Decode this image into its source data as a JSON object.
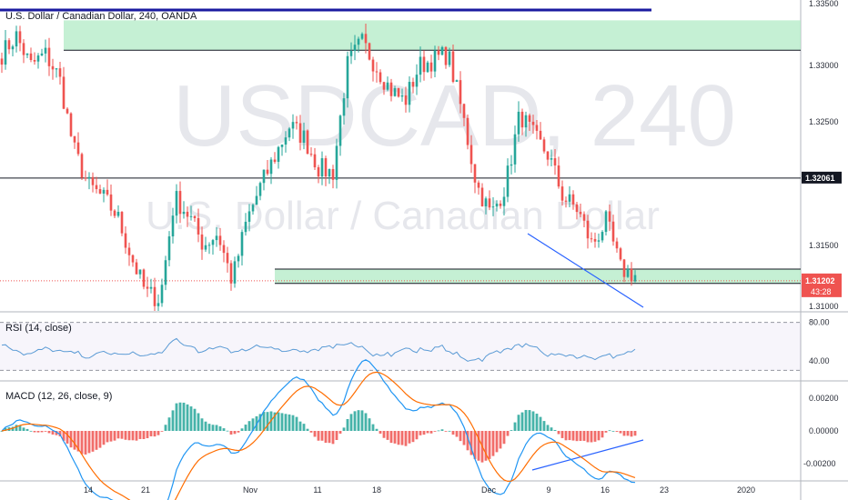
{
  "title": "U.S. Dollar / Canadian Dollar, 240, OANDA",
  "watermark": {
    "symbol": "USDCAD, 240",
    "description": "U.S. Dollar / Canadian Dollar"
  },
  "colors": {
    "up": "#26a69a",
    "down": "#ef5350",
    "zone": "#b2ebc5",
    "rsi": "#5b9bd5",
    "macd": "#2196f3",
    "signal": "#ff6d00",
    "trendline": "#2962ff",
    "hist_up": "#26a69a",
    "hist_down": "#ef5350"
  },
  "price_axis": {
    "ticks": [
      "1.33500",
      "1.33000",
      "1.32500",
      "1.32061",
      "1.31500",
      "1.31202",
      "1.31000"
    ],
    "min": 1.3095,
    "max": 1.3355
  },
  "badges": {
    "level": "1.32061",
    "last_price": "1.31202",
    "countdown": "43:28"
  },
  "rsi": {
    "label": "RSI (14, close)",
    "ticks": [
      "80.00",
      "40.00"
    ],
    "upper": 80,
    "lower": 30
  },
  "macd": {
    "label": "MACD (12, 26, close, 9)",
    "ticks": [
      "0.00200",
      "0.00000",
      "-0.00200"
    ]
  },
  "time_axis": [
    "14",
    "21",
    "Nov",
    "11",
    "18",
    "Dec",
    "9",
    "16",
    "23",
    "2020"
  ],
  "chart_data": {
    "type": "candlestick",
    "title": "U.S. Dollar / Canadian Dollar, 240, OANDA",
    "symbol": "USDCAD",
    "interval": "240",
    "close_path": [
      1.331,
      1.3325,
      1.33,
      1.331,
      1.329,
      1.323,
      1.32,
      1.319,
      1.3175,
      1.314,
      1.311,
      1.3105,
      1.319,
      1.3175,
      1.315,
      1.316,
      1.312,
      1.317,
      1.32,
      1.3225,
      1.325,
      1.324,
      1.3215,
      1.321,
      1.33,
      1.332,
      1.33,
      1.328,
      1.327,
      1.33,
      1.3305,
      1.331,
      1.326,
      1.32,
      1.3175,
      1.32,
      1.326,
      1.324,
      1.3225,
      1.319,
      1.318,
      1.315,
      1.317,
      1.313,
      1.3125
    ],
    "zones": [
      {
        "from": 1.3313,
        "to": 1.3338
      },
      {
        "from": 1.3118,
        "to": 1.313
      }
    ],
    "levels": [
      1.3313,
      1.32061,
      1.313,
      1.3118
    ]
  }
}
